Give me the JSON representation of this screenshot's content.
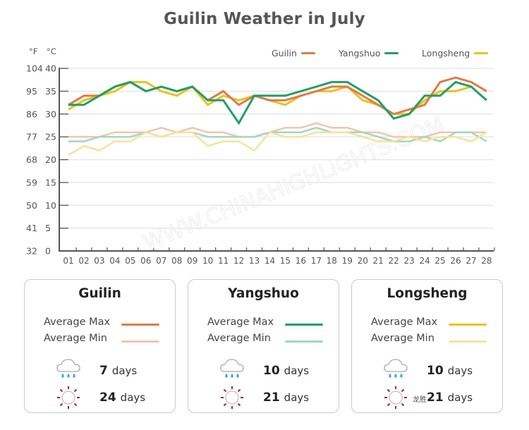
{
  "title": "Guilin Weather in July",
  "units": {
    "fahrenheit": "°F",
    "celsius": "°C"
  },
  "legend": [
    {
      "label": "Guilin",
      "color": "#e07b4a"
    },
    {
      "label": "Yangshuo",
      "color": "#20a066"
    },
    {
      "label": "Longsheng",
      "color": "#ebc21c"
    }
  ],
  "chart_data": {
    "type": "line",
    "title": "Guilin Weather in July",
    "xlabel": "",
    "ylabel": "°F / °C",
    "x": [
      "01",
      "02",
      "03",
      "04",
      "05",
      "06",
      "07",
      "08",
      "09",
      "10",
      "11",
      "12",
      "13",
      "14",
      "15",
      "16",
      "17",
      "18",
      "19",
      "20",
      "21",
      "22",
      "23",
      "24",
      "25",
      "26",
      "27",
      "28"
    ],
    "y_ticks_c": [
      0,
      5,
      10,
      15,
      20,
      25,
      30,
      35,
      40
    ],
    "y_ticks_f": [
      32,
      41,
      50,
      59,
      68,
      77,
      86,
      95,
      104
    ],
    "ylim": [
      0,
      40
    ],
    "grid": true,
    "legend_position": "top-right",
    "watermark": "WWW.CHINAHIGHLIGHTS.COM",
    "series": [
      {
        "name": "Guilin Average Max",
        "color": "#e07b4a",
        "width": 3,
        "values": [
          32,
          34,
          34,
          36,
          37,
          35,
          36,
          35,
          36,
          33,
          35,
          32,
          34,
          33,
          33,
          34,
          35,
          36,
          36,
          34,
          32,
          30,
          31,
          32,
          37,
          38,
          37,
          35
        ]
      },
      {
        "name": "Yangshuo Average Max",
        "color": "#20a066",
        "width": 3,
        "values": [
          32,
          32,
          34,
          36,
          37,
          35,
          36,
          35,
          36,
          33,
          33,
          28,
          34,
          34,
          34,
          35,
          36,
          37,
          37,
          35,
          33,
          29,
          30,
          34,
          34,
          37,
          36,
          33
        ]
      },
      {
        "name": "Longsheng Average Max",
        "color": "#ebc21c",
        "width": 3,
        "values": [
          31,
          33,
          34,
          35,
          37,
          37,
          35,
          34,
          36,
          32,
          34,
          33,
          34,
          33,
          32,
          34,
          35,
          35,
          36,
          33,
          32,
          30,
          30,
          33,
          35,
          35,
          36,
          null
        ]
      },
      {
        "name": "Guilin Average Min",
        "color": "#f3c4ae",
        "width": 2.5,
        "values": [
          25,
          25,
          25,
          26,
          26,
          26,
          27,
          26,
          27,
          26,
          26,
          25,
          25,
          26,
          27,
          27,
          28,
          27,
          27,
          26,
          26,
          25,
          25,
          25,
          26,
          26,
          26,
          26
        ]
      },
      {
        "name": "Yangshuo Average Min",
        "color": "#9fd8be",
        "width": 2.5,
        "values": [
          24,
          24,
          25,
          25,
          25,
          26,
          25,
          26,
          26,
          25,
          25,
          25,
          25,
          26,
          26,
          26,
          27,
          26,
          26,
          26,
          25,
          24,
          24,
          25,
          24,
          26,
          26,
          24
        ]
      },
      {
        "name": "Longsheng Average Min",
        "color": "#f5e39a",
        "width": 2.5,
        "values": [
          21,
          23,
          22,
          24,
          24,
          26,
          25,
          26,
          26,
          23,
          24,
          24,
          22,
          26,
          25,
          25,
          26,
          26,
          26,
          25,
          24,
          24,
          25,
          24,
          25,
          25,
          24,
          26
        ]
      }
    ]
  },
  "cards": [
    {
      "name": "Guilin",
      "avg_max_label": "Average Max",
      "avg_min_label": "Average Min",
      "max_color": "#e07b4a",
      "min_color": "#f3c4ae",
      "rain_days": "7",
      "sun_days": "24",
      "days_label": "days"
    },
    {
      "name": "Yangshuo",
      "avg_max_label": "Average Max",
      "avg_min_label": "Average Min",
      "max_color": "#20a066",
      "min_color": "#9fd8be",
      "rain_days": "10",
      "sun_days": "21",
      "days_label": "days"
    },
    {
      "name": "Longsheng",
      "avg_max_label": "Average Max",
      "avg_min_label": "Average Min",
      "max_color": "#ebc21c",
      "min_color": "#f5e39a",
      "rain_days": "10",
      "sun_days": "21",
      "days_label": "days",
      "cjk_note": "龙胜"
    }
  ]
}
